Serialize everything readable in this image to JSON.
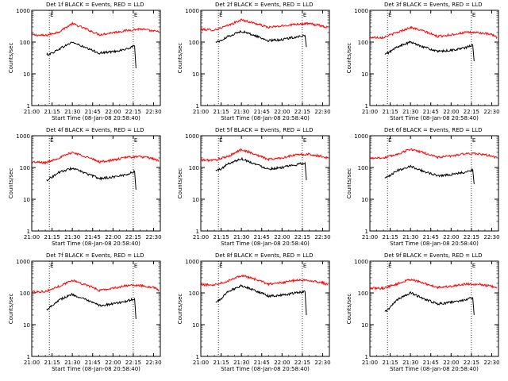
{
  "figure": {
    "title_suffix": "BLACK = Events, RED = LLD",
    "ylabel": "Counts/sec",
    "xlabel": "Start Time (08-Jan-08 20:58:40)",
    "flare_marker": "E"
  },
  "chart_data": [
    {
      "type": "line",
      "title": "Det 1f BLACK = Events, RED = LLD",
      "xlabel": "Start Time (08-Jan-08 20:58:40)",
      "ylabel": "Counts/sec",
      "log_y": true,
      "xlim": [
        "21:00",
        "22:35"
      ],
      "ylim": [
        1,
        1000
      ],
      "x_ticks": [
        "21:00",
        "21:15",
        "21:30",
        "21:45",
        "22:00",
        "22:15",
        "22:30"
      ],
      "y_ticks": [
        "1",
        "10",
        "100",
        "1000"
      ],
      "markers": [
        "21:13",
        "22:15"
      ],
      "series": [
        {
          "color": "#ff0000",
          "x": [
            "21:00",
            "21:10",
            "21:20",
            "21:30",
            "21:40",
            "21:50",
            "22:00",
            "22:10",
            "22:20",
            "22:30",
            "22:34"
          ],
          "values": [
            170,
            160,
            210,
            380,
            260,
            170,
            200,
            230,
            260,
            220,
            210
          ]
        },
        {
          "color": "#000000",
          "x": [
            "21:11",
            "21:15",
            "21:20",
            "21:30",
            "21:40",
            "21:50",
            "22:00",
            "22:10",
            "22:16",
            "22:17"
          ],
          "values": [
            40,
            45,
            60,
            100,
            65,
            45,
            50,
            60,
            75,
            15
          ]
        }
      ]
    },
    {
      "type": "line",
      "title": "Det 2f BLACK = Events, RED = LLD",
      "xlabel": "Start Time (08-Jan-08 20:58:40)",
      "ylabel": "Counts/sec",
      "log_y": true,
      "xlim": [
        "21:00",
        "22:35"
      ],
      "ylim": [
        1,
        1000
      ],
      "x_ticks": [
        "21:00",
        "21:15",
        "21:30",
        "21:45",
        "22:00",
        "22:15",
        "22:30"
      ],
      "y_ticks": [
        "1",
        "10",
        "100",
        "1000"
      ],
      "markers": [
        "21:13",
        "22:15"
      ],
      "series": [
        {
          "color": "#ff0000",
          "x": [
            "21:00",
            "21:10",
            "21:20",
            "21:30",
            "21:40",
            "21:50",
            "22:00",
            "22:10",
            "22:20",
            "22:30",
            "22:34"
          ],
          "values": [
            250,
            240,
            330,
            500,
            390,
            290,
            320,
            370,
            380,
            320,
            290
          ]
        },
        {
          "color": "#000000",
          "x": [
            "21:11",
            "21:15",
            "21:20",
            "21:30",
            "21:40",
            "21:50",
            "22:00",
            "22:10",
            "22:17",
            "22:18"
          ],
          "values": [
            100,
            110,
            150,
            220,
            160,
            110,
            120,
            145,
            160,
            70
          ]
        }
      ]
    },
    {
      "type": "line",
      "title": "Det 3f BLACK = Events, RED = LLD",
      "xlabel": "Start Time (08-Jan-08 20:58:40)",
      "ylabel": "Counts/sec",
      "log_y": true,
      "xlim": [
        "21:00",
        "22:35"
      ],
      "ylim": [
        1,
        1000
      ],
      "x_ticks": [
        "21:00",
        "21:15",
        "21:30",
        "21:45",
        "22:00",
        "22:15",
        "22:30"
      ],
      "y_ticks": [
        "1",
        "10",
        "100",
        "1000"
      ],
      "markers": [
        "21:13",
        "22:15"
      ],
      "series": [
        {
          "color": "#ff0000",
          "x": [
            "21:00",
            "21:10",
            "21:20",
            "21:30",
            "21:40",
            "21:50",
            "22:00",
            "22:10",
            "22:20",
            "22:30",
            "22:34"
          ],
          "values": [
            140,
            140,
            200,
            290,
            220,
            150,
            170,
            200,
            200,
            170,
            140
          ]
        },
        {
          "color": "#000000",
          "x": [
            "21:11",
            "21:15",
            "21:20",
            "21:30",
            "21:40",
            "21:50",
            "22:00",
            "22:10",
            "22:16",
            "22:17"
          ],
          "values": [
            40,
            50,
            70,
            100,
            70,
            50,
            55,
            65,
            80,
            25
          ]
        }
      ]
    },
    {
      "type": "line",
      "title": "Det 4f BLACK = Events, RED = LLD",
      "xlabel": "Start Time (08-Jan-08 20:58:40)",
      "ylabel": "Counts/sec",
      "log_y": true,
      "xlim": [
        "21:00",
        "22:35"
      ],
      "ylim": [
        1,
        1000
      ],
      "x_ticks": [
        "21:00",
        "21:15",
        "21:30",
        "21:45",
        "22:00",
        "22:15",
        "22:30"
      ],
      "y_ticks": [
        "1",
        "10",
        "100",
        "1000"
      ],
      "markers": [
        "21:13",
        "22:15"
      ],
      "series": [
        {
          "color": "#ff0000",
          "x": [
            "21:00",
            "21:10",
            "21:20",
            "21:30",
            "21:40",
            "21:50",
            "22:00",
            "22:10",
            "22:20",
            "22:30",
            "22:34"
          ],
          "values": [
            150,
            140,
            200,
            300,
            220,
            150,
            170,
            210,
            220,
            190,
            160
          ]
        },
        {
          "color": "#000000",
          "x": [
            "21:11",
            "21:15",
            "21:20",
            "21:30",
            "21:40",
            "21:50",
            "22:00",
            "22:10",
            "22:16",
            "22:17"
          ],
          "values": [
            40,
            50,
            70,
            95,
            65,
            45,
            50,
            60,
            75,
            20
          ]
        }
      ]
    },
    {
      "type": "line",
      "title": "Det 5f BLACK = Events, RED = LLD",
      "xlabel": "Start Time (08-Jan-08 20:58:40)",
      "ylabel": "Counts/sec",
      "log_y": true,
      "xlim": [
        "21:00",
        "22:35"
      ],
      "ylim": [
        1,
        1000
      ],
      "x_ticks": [
        "21:00",
        "21:15",
        "21:30",
        "21:45",
        "22:00",
        "22:15",
        "22:30"
      ],
      "y_ticks": [
        "1",
        "10",
        "100",
        "1000"
      ],
      "markers": [
        "21:13",
        "22:15"
      ],
      "series": [
        {
          "color": "#ff0000",
          "x": [
            "21:00",
            "21:10",
            "21:20",
            "21:30",
            "21:40",
            "21:50",
            "22:00",
            "22:10",
            "22:20",
            "22:30",
            "22:34"
          ],
          "values": [
            170,
            170,
            220,
            370,
            260,
            180,
            200,
            250,
            260,
            220,
            200
          ]
        },
        {
          "color": "#000000",
          "x": [
            "21:11",
            "21:15",
            "21:20",
            "21:30",
            "21:40",
            "21:50",
            "22:00",
            "22:10",
            "22:17",
            "22:18"
          ],
          "values": [
            80,
            90,
            130,
            190,
            130,
            90,
            100,
            120,
            140,
            40
          ]
        }
      ]
    },
    {
      "type": "line",
      "title": "Det 6f BLACK = Events, RED = LLD",
      "xlabel": "Start Time (08-Jan-08 20:58:40)",
      "ylabel": "Counts/sec",
      "log_y": true,
      "xlim": [
        "21:00",
        "22:35"
      ],
      "ylim": [
        1,
        1000
      ],
      "x_ticks": [
        "21:00",
        "21:15",
        "21:30",
        "21:45",
        "22:00",
        "22:15",
        "22:30"
      ],
      "y_ticks": [
        "1",
        "10",
        "100",
        "1000"
      ],
      "markers": [
        "21:13",
        "22:15"
      ],
      "series": [
        {
          "color": "#ff0000",
          "x": [
            "21:00",
            "21:10",
            "21:20",
            "21:30",
            "21:40",
            "21:50",
            "22:00",
            "22:10",
            "22:20",
            "22:30",
            "22:34"
          ],
          "values": [
            200,
            200,
            260,
            380,
            290,
            210,
            230,
            270,
            270,
            230,
            200
          ]
        },
        {
          "color": "#000000",
          "x": [
            "21:11",
            "21:15",
            "21:20",
            "21:30",
            "21:40",
            "21:50",
            "22:00",
            "22:10",
            "22:16",
            "22:17"
          ],
          "values": [
            45,
            55,
            80,
            110,
            75,
            55,
            60,
            70,
            85,
            30
          ]
        }
      ]
    },
    {
      "type": "line",
      "title": "Det 7f BLACK = Events, RED = LLD",
      "xlabel": "Start Time (08-Jan-08 20:58:40)",
      "ylabel": "Counts/sec",
      "log_y": true,
      "xlim": [
        "21:00",
        "22:35"
      ],
      "ylim": [
        1,
        1000
      ],
      "x_ticks": [
        "21:00",
        "21:15",
        "21:30",
        "21:45",
        "22:00",
        "22:15",
        "22:30"
      ],
      "y_ticks": [
        "1",
        "10",
        "100",
        "1000"
      ],
      "markers": [
        "21:13",
        "22:15"
      ],
      "series": [
        {
          "color": "#ff0000",
          "x": [
            "21:00",
            "21:10",
            "21:20",
            "21:30",
            "21:40",
            "21:50",
            "22:00",
            "22:10",
            "22:20",
            "22:30",
            "22:34"
          ],
          "values": [
            110,
            110,
            160,
            250,
            180,
            120,
            140,
            170,
            170,
            150,
            120
          ]
        },
        {
          "color": "#000000",
          "x": [
            "21:11",
            "21:15",
            "21:20",
            "21:30",
            "21:40",
            "21:50",
            "22:00",
            "22:10",
            "22:16",
            "22:17"
          ],
          "values": [
            30,
            40,
            60,
            90,
            60,
            40,
            45,
            55,
            65,
            15
          ]
        }
      ]
    },
    {
      "type": "line",
      "title": "Det 8f BLACK = Events, RED = LLD",
      "xlabel": "Start Time (08-Jan-08 20:58:40)",
      "ylabel": "Counts/sec",
      "log_y": true,
      "xlim": [
        "21:00",
        "22:35"
      ],
      "ylim": [
        1,
        1000
      ],
      "x_ticks": [
        "21:00",
        "21:15",
        "21:30",
        "21:45",
        "22:00",
        "22:15",
        "22:30"
      ],
      "y_ticks": [
        "1",
        "10",
        "100",
        "1000"
      ],
      "markers": [
        "21:13",
        "22:15"
      ],
      "series": [
        {
          "color": "#ff0000",
          "x": [
            "21:00",
            "21:10",
            "21:20",
            "21:30",
            "21:40",
            "21:50",
            "22:00",
            "22:10",
            "22:20",
            "22:30",
            "22:34"
          ],
          "values": [
            180,
            180,
            240,
            360,
            270,
            190,
            210,
            250,
            250,
            210,
            180
          ]
        },
        {
          "color": "#000000",
          "x": [
            "21:11",
            "21:15",
            "21:20",
            "21:30",
            "21:40",
            "21:50",
            "22:00",
            "22:10",
            "22:17",
            "22:18"
          ],
          "values": [
            50,
            65,
            110,
            170,
            120,
            80,
            85,
            100,
            110,
            20
          ]
        }
      ]
    },
    {
      "type": "line",
      "title": "Det 9f BLACK = Events, RED = LLD",
      "xlabel": "Start Time (08-Jan-08 20:58:40)",
      "ylabel": "Counts/sec",
      "log_y": true,
      "xlim": [
        "21:00",
        "22:35"
      ],
      "ylim": [
        1,
        1000
      ],
      "x_ticks": [
        "21:00",
        "21:15",
        "21:30",
        "21:45",
        "22:00",
        "22:15",
        "22:30"
      ],
      "y_ticks": [
        "1",
        "10",
        "100",
        "1000"
      ],
      "markers": [
        "21:13",
        "22:15"
      ],
      "series": [
        {
          "color": "#ff0000",
          "x": [
            "21:00",
            "21:10",
            "21:20",
            "21:30",
            "21:40",
            "21:50",
            "22:00",
            "22:10",
            "22:20",
            "22:30",
            "22:34"
          ],
          "values": [
            140,
            140,
            190,
            270,
            200,
            150,
            160,
            190,
            190,
            160,
            140
          ]
        },
        {
          "color": "#000000",
          "x": [
            "21:11",
            "21:15",
            "21:20",
            "21:30",
            "21:40",
            "21:50",
            "22:00",
            "22:10",
            "22:16",
            "22:17"
          ],
          "values": [
            25,
            35,
            60,
            100,
            65,
            45,
            50,
            60,
            70,
            20
          ]
        }
      ]
    }
  ]
}
